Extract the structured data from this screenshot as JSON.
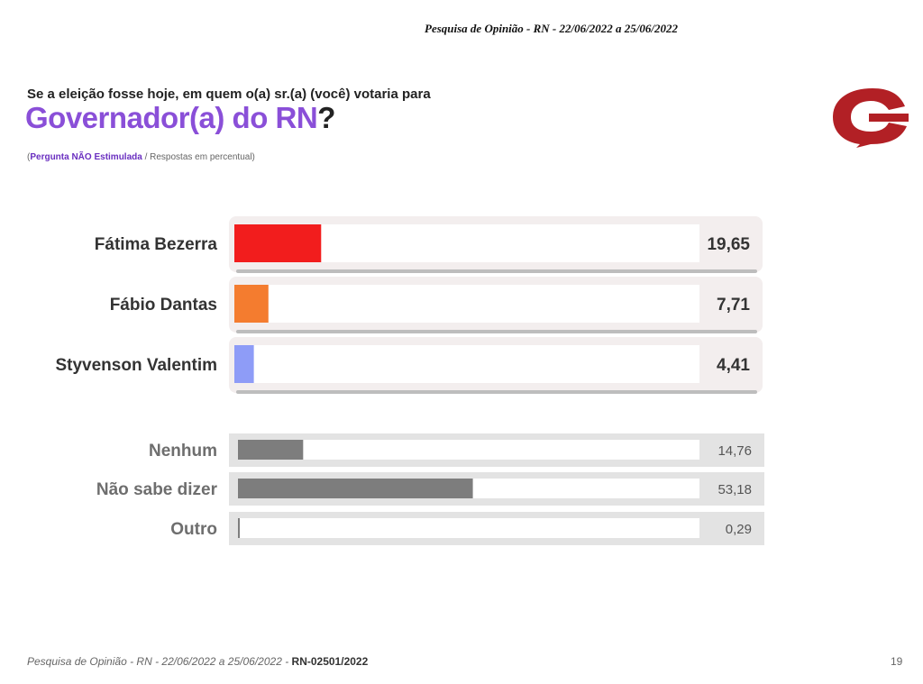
{
  "header": {
    "survey_line": "Pesquisa de Opinião -  RN - 22/06/2022  a 25/06/2022"
  },
  "question": {
    "line1": "Se a eleição fosse hoje, em quem o(a) sr.(a) (você) votaria para",
    "title_main": "Governador(a) do RN",
    "title_mark": "?",
    "sub_open": "(",
    "sub_strong": "Pergunta NÃO Estimulada",
    "sub_rest": " /  Respostas em percentual)"
  },
  "colors": {
    "fatima": "#f21d1d",
    "fabio": "#f47c2f",
    "styvenson": "#8e9cf7",
    "other_bars": "#7d7d7d",
    "title_purple": "#8a4fd8",
    "logo_red": "#b22025"
  },
  "chart_data": {
    "type": "bar",
    "orientation": "horizontal",
    "xlim": [
      0,
      100
    ],
    "categories": [
      "Fátima Bezerra",
      "Fábio Dantas",
      "Styvenson Valentim",
      "Nenhum",
      "Não sabe dizer",
      "Outro"
    ],
    "values": [
      19.65,
      7.71,
      4.41,
      14.76,
      53.18,
      0.29
    ],
    "value_labels": [
      "19,65",
      "7,71",
      "4,41",
      "14,76",
      "53,18",
      "0,29"
    ],
    "bar_colors": [
      "#f21d1d",
      "#f47c2f",
      "#8e9cf7",
      "#7d7d7d",
      "#7d7d7d",
      "#7d7d7d"
    ],
    "groups": [
      "candidates",
      "candidates",
      "candidates",
      "other",
      "other",
      "other"
    ]
  },
  "footer": {
    "text": "Pesquisa de Opinião  -  RN - 22/06/2022 a  25/06/2022 - ",
    "code": "RN-02501/2022",
    "page": "19"
  }
}
